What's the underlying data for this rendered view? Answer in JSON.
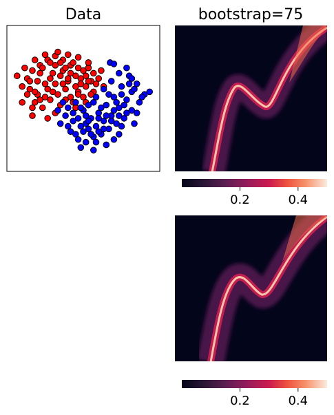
{
  "chart_data": [
    {
      "type": "scatter",
      "title": "Data",
      "xlabel": "",
      "ylabel": "",
      "axis_ticks": false,
      "xlim": [
        -2.5,
        3.5
      ],
      "ylim": [
        -3.0,
        2.5
      ],
      "marker_edge_color": "#000000",
      "series": [
        {
          "color": "#ff0000",
          "points": [
            [
              -1.7,
              0.5
            ],
            [
              -1.5,
              0.8
            ],
            [
              -1.2,
              1.0
            ],
            [
              -0.9,
              1.2
            ],
            [
              -0.6,
              1.35
            ],
            [
              -0.3,
              1.2
            ],
            [
              0.0,
              1.0
            ],
            [
              0.3,
              0.9
            ],
            [
              0.6,
              0.6
            ],
            [
              0.8,
              0.4
            ],
            [
              -1.9,
              0.2
            ],
            [
              -1.6,
              0.1
            ],
            [
              -1.3,
              -0.1
            ],
            [
              -1.0,
              0.3
            ],
            [
              -0.7,
              0.0
            ],
            [
              -0.4,
              0.6
            ],
            [
              -0.1,
              0.4
            ],
            [
              0.2,
              0.2
            ],
            [
              0.5,
              -0.2
            ],
            [
              0.9,
              0.0
            ],
            [
              -1.4,
              -0.4
            ],
            [
              -1.1,
              -0.6
            ],
            [
              -0.8,
              -0.3
            ],
            [
              -0.5,
              -0.1
            ],
            [
              -0.2,
              0.1
            ],
            [
              0.1,
              -0.4
            ],
            [
              0.4,
              0.5
            ],
            [
              0.7,
              0.9
            ],
            [
              1.0,
              0.3
            ],
            [
              -0.9,
              -1.0
            ],
            [
              -1.5,
              -0.9
            ],
            [
              -1.2,
              0.7
            ],
            [
              -0.6,
              1.0
            ],
            [
              -0.3,
              0.8
            ],
            [
              0.0,
              0.7
            ],
            [
              0.3,
              0.0
            ],
            [
              0.6,
              -0.4
            ],
            [
              -1.8,
              0.9
            ],
            [
              -1.4,
              1.2
            ],
            [
              -1.0,
              1.4
            ],
            [
              -0.5,
              1.5
            ],
            [
              -0.1,
              1.4
            ],
            [
              0.3,
              1.3
            ],
            [
              0.7,
              1.1
            ],
            [
              1.2,
              0.8
            ],
            [
              -2.1,
              0.6
            ],
            [
              -1.2,
              -0.3
            ],
            [
              -0.4,
              -0.5
            ],
            [
              0.2,
              0.6
            ],
            [
              0.8,
              -0.1
            ],
            [
              -1.6,
              0.4
            ],
            [
              -0.8,
              0.5
            ],
            [
              -0.2,
              0.9
            ],
            [
              0.4,
              0.3
            ],
            [
              1.1,
              0.5
            ],
            [
              -1.3,
              0.4
            ],
            [
              -0.7,
              0.7
            ],
            [
              0.1,
              1.1
            ],
            [
              0.6,
              0.2
            ],
            [
              -1.0,
              -0.2
            ],
            [
              -0.3,
              0.3
            ],
            [
              0.9,
              0.7
            ],
            [
              -1.9,
              -0.4
            ],
            [
              -0.6,
              -0.8
            ],
            [
              0.0,
              -0.2
            ],
            [
              -1.1,
              0.9
            ],
            [
              -0.4,
              1.1
            ],
            [
              0.5,
              0.8
            ],
            [
              -1.7,
              -0.1
            ],
            [
              -0.9,
              0.1
            ],
            [
              -0.2,
              -0.3
            ],
            [
              0.3,
              -0.1
            ],
            [
              1.3,
              0.2
            ],
            [
              -1.5,
              -0.6
            ],
            [
              -0.6,
              0.3
            ],
            [
              0.7,
              0.4
            ],
            [
              -1.4,
              0.0
            ],
            [
              -0.8,
              1.1
            ],
            [
              0.2,
              -0.6
            ],
            [
              -0.1,
              0.5
            ]
          ]
        },
        {
          "color": "#0000ff",
          "points": [
            [
              -0.5,
              -0.7
            ],
            [
              -0.2,
              -0.9
            ],
            [
              0.1,
              -1.1
            ],
            [
              0.4,
              -1.3
            ],
            [
              0.7,
              -1.4
            ],
            [
              1.0,
              -1.3
            ],
            [
              1.3,
              -1.1
            ],
            [
              1.6,
              -0.9
            ],
            [
              1.9,
              -0.6
            ],
            [
              2.2,
              -0.3
            ],
            [
              2.4,
              0.0
            ],
            [
              2.6,
              0.3
            ],
            [
              2.3,
              0.6
            ],
            [
              2.0,
              0.2
            ],
            [
              1.7,
              -0.2
            ],
            [
              1.4,
              -0.5
            ],
            [
              1.1,
              -0.8
            ],
            [
              0.8,
              -1.0
            ],
            [
              0.5,
              -0.7
            ],
            [
              0.2,
              -0.4
            ],
            [
              -0.1,
              -0.6
            ],
            [
              0.0,
              -1.5
            ],
            [
              0.3,
              -1.8
            ],
            [
              0.6,
              -1.9
            ],
            [
              0.9,
              -1.7
            ],
            [
              1.2,
              -1.6
            ],
            [
              1.5,
              -1.4
            ],
            [
              1.8,
              -1.2
            ],
            [
              2.1,
              -1.0
            ],
            [
              2.4,
              -0.7
            ],
            [
              2.7,
              -0.4
            ],
            [
              2.9,
              -0.1
            ],
            [
              1.0,
              -0.2
            ],
            [
              1.3,
              0.1
            ],
            [
              1.6,
              0.4
            ],
            [
              1.9,
              0.7
            ],
            [
              2.2,
              0.9
            ],
            [
              0.4,
              -2.1
            ],
            [
              0.9,
              -2.2
            ],
            [
              1.4,
              -2.0
            ],
            [
              1.9,
              -1.6
            ],
            [
              2.5,
              -1.2
            ],
            [
              3.1,
              0.0
            ],
            [
              -0.4,
              -1.2
            ],
            [
              -0.1,
              -1.3
            ],
            [
              0.7,
              -0.5
            ],
            [
              1.5,
              -0.1
            ],
            [
              2.1,
              -0.5
            ],
            [
              2.6,
              -0.8
            ],
            [
              0.6,
              -1.2
            ],
            [
              1.1,
              -1.0
            ],
            [
              1.7,
              -0.7
            ],
            [
              2.3,
              0.3
            ],
            [
              0.3,
              -1.0
            ],
            [
              0.8,
              -1.6
            ],
            [
              1.3,
              -1.4
            ],
            [
              1.8,
              -0.4
            ],
            [
              2.0,
              -1.3
            ],
            [
              0.1,
              -0.8
            ],
            [
              0.5,
              -1.5
            ],
            [
              1.2,
              -0.6
            ],
            [
              1.6,
              -1.1
            ],
            [
              2.4,
              0.5
            ],
            [
              0.9,
              -0.4
            ],
            [
              1.4,
              -0.9
            ],
            [
              2.0,
              -0.1
            ],
            [
              0.2,
              -1.6
            ],
            [
              0.7,
              -1.1
            ],
            [
              1.1,
              -1.5
            ],
            [
              1.7,
              -1.8
            ],
            [
              2.2,
              -0.8
            ],
            [
              2.8,
              -0.2
            ],
            [
              1.55,
              1.1
            ],
            [
              1.7,
              1.05
            ],
            [
              -0.3,
              -0.4
            ],
            [
              0.4,
              -0.6
            ],
            [
              1.0,
              -1.9
            ],
            [
              1.9,
              -0.9
            ],
            [
              2.5,
              0.1
            ],
            [
              0.6,
              -0.9
            ]
          ]
        }
      ]
    },
    {
      "type": "heatmap",
      "title": "bootstrap=75",
      "xlabel": "",
      "ylabel": "",
      "axis_ticks": false,
      "colormap": "rocket",
      "colorbar": {
        "orientation": "horizontal",
        "min": 0.0,
        "max": 0.5,
        "ticks": [
          0.2,
          0.4
        ],
        "tick_labels": [
          "0.2",
          "0.4"
        ]
      },
      "description": "value peaks along S-shaped decision boundary"
    },
    {
      "type": "heatmap",
      "title": "",
      "xlabel": "",
      "ylabel": "",
      "axis_ticks": false,
      "colormap": "rocket",
      "colorbar": {
        "orientation": "horizontal",
        "min": 0.0,
        "max": 0.5,
        "ticks": [
          0.2,
          0.4
        ],
        "tick_labels": [
          "0.2",
          "0.4"
        ]
      }
    }
  ]
}
